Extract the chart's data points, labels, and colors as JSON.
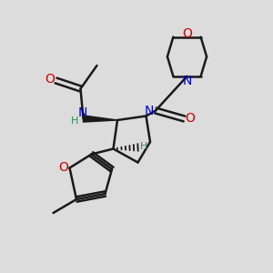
{
  "bg_color": "#dcdcdc",
  "bond_color": "#1a1a1a",
  "N_color": "#0000cc",
  "O_color": "#cc0000",
  "H_color": "#2e8b57",
  "line_width": 1.8,
  "fig_w": 3.0,
  "fig_h": 3.0,
  "dpi": 100,
  "xlim": [
    0,
    10
  ],
  "ylim": [
    0,
    10
  ]
}
